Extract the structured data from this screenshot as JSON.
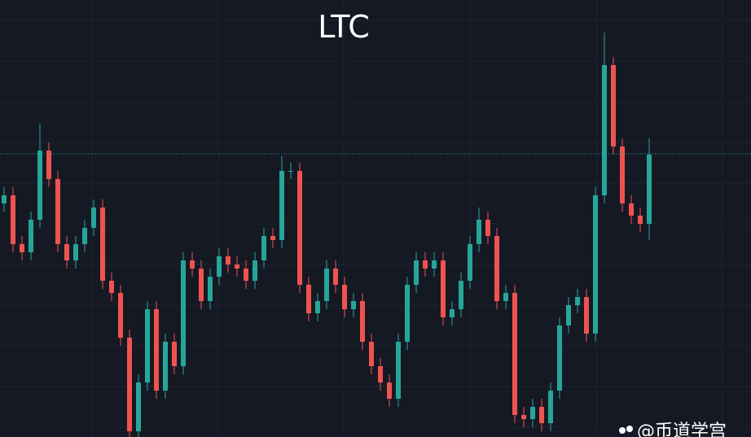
{
  "chart_data": {
    "type": "candlestick",
    "title": "LTC",
    "watermark": "@币道学宫",
    "up_color": "#26a69a",
    "down_color": "#ef5350",
    "last_price": 348,
    "last_price_color": "#26a69a",
    "ylim": [
      0,
      537
    ],
    "open": [
      287,
      297,
      237,
      227,
      267,
      352,
      317,
      237,
      217,
      237,
      257,
      282,
      192,
      177,
      122,
      7,
      67,
      157,
      57,
      117,
      87,
      217,
      207,
      167,
      197,
      222,
      212,
      207,
      192,
      217,
      247,
      242,
      327,
      327,
      187,
      152,
      167,
      207,
      187,
      157,
      167,
      117,
      87,
      67,
      47,
      117,
      187,
      217,
      207,
      217,
      147,
      157,
      192,
      237,
      267,
      247,
      167,
      177,
      27,
      22,
      37,
      17,
      57,
      137,
      162,
      172,
      127,
      297,
      457,
      357,
      287,
      272,
      262
    ],
    "high": [
      307,
      307,
      247,
      277,
      385,
      362,
      327,
      247,
      247,
      267,
      292,
      292,
      202,
      187,
      132,
      77,
      167,
      167,
      127,
      127,
      227,
      227,
      217,
      207,
      232,
      232,
      222,
      217,
      227,
      257,
      257,
      345,
      337,
      337,
      197,
      177,
      217,
      217,
      197,
      177,
      177,
      127,
      97,
      77,
      127,
      197,
      227,
      227,
      227,
      227,
      167,
      202,
      247,
      282,
      277,
      257,
      187,
      187,
      37,
      47,
      47,
      67,
      147,
      172,
      182,
      182,
      307,
      497,
      467,
      367,
      297,
      282,
      367
    ],
    "low": [
      277,
      227,
      217,
      217,
      257,
      307,
      227,
      207,
      207,
      227,
      247,
      182,
      167,
      112,
      0,
      0,
      57,
      47,
      47,
      77,
      77,
      197,
      157,
      157,
      187,
      202,
      197,
      182,
      182,
      207,
      232,
      232,
      317,
      177,
      142,
      142,
      157,
      177,
      147,
      147,
      107,
      77,
      57,
      37,
      37,
      107,
      177,
      197,
      197,
      137,
      137,
      147,
      182,
      227,
      237,
      157,
      157,
      17,
      12,
      12,
      7,
      7,
      47,
      127,
      152,
      117,
      117,
      287,
      347,
      277,
      262,
      252,
      242
    ],
    "close": [
      297,
      237,
      227,
      267,
      352,
      317,
      237,
      217,
      237,
      257,
      282,
      192,
      177,
      122,
      7,
      67,
      157,
      57,
      117,
      87,
      217,
      207,
      167,
      197,
      222,
      212,
      207,
      192,
      217,
      247,
      242,
      327,
      327,
      187,
      152,
      167,
      207,
      187,
      157,
      167,
      117,
      87,
      67,
      47,
      117,
      187,
      217,
      207,
      217,
      147,
      157,
      192,
      237,
      267,
      247,
      167,
      177,
      27,
      22,
      37,
      17,
      57,
      137,
      162,
      172,
      127,
      297,
      457,
      357,
      287,
      272,
      262,
      347
    ]
  }
}
